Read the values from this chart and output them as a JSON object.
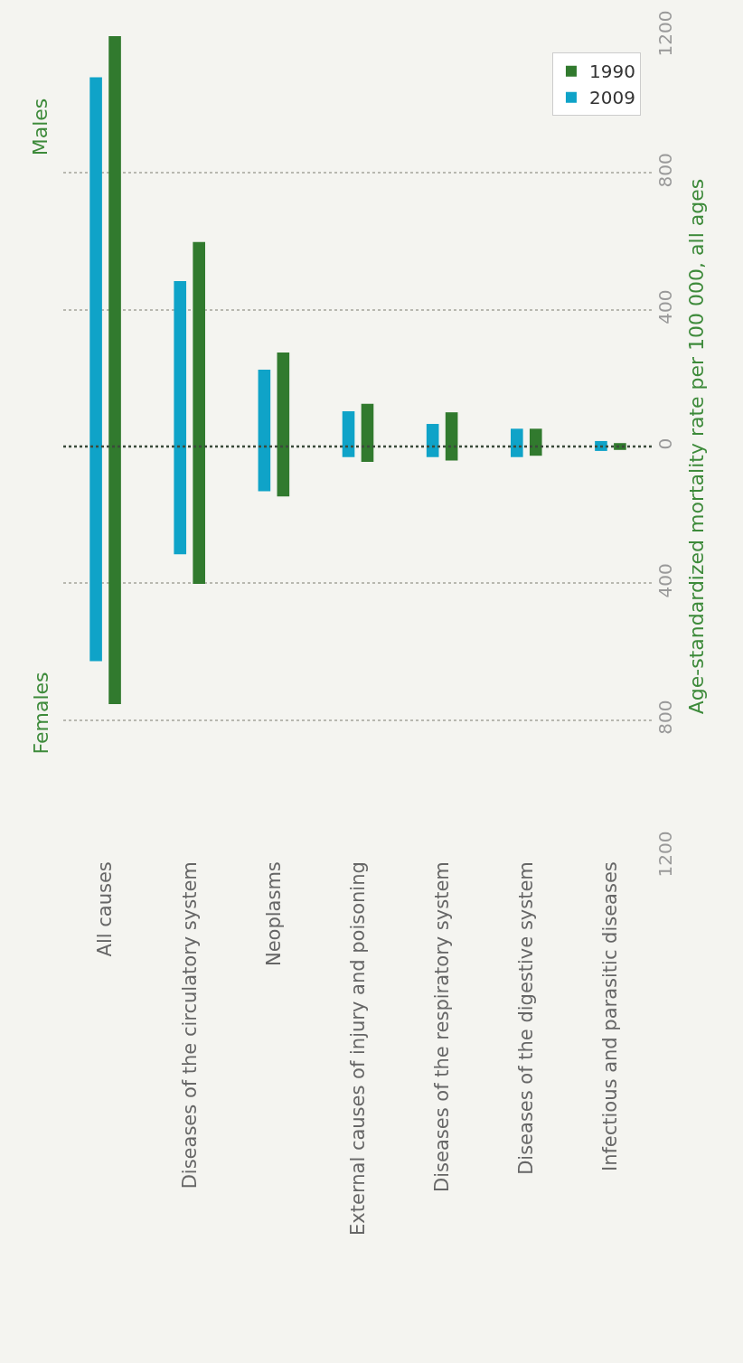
{
  "chart_data": {
    "type": "bar",
    "categories": [
      "All causes",
      "Diseases of the circulatory system",
      "Neoplasms",
      "External causes of injury and poisoning",
      "Diseases of the respiratory system",
      "Diseases of the digestive system",
      "Infectious and parasitic diseases"
    ],
    "series": [
      {
        "name": "2009",
        "color": "#0fa3c8",
        "base": [
          -628,
          -315,
          -131,
          -31,
          -31,
          -31,
          -13
        ],
        "values": [
          1708,
          799,
          356,
          134,
          97,
          83,
          29
        ]
      },
      {
        "name": "1990",
        "color": "#317a2e",
        "base": [
          -753,
          -402,
          -146,
          -45,
          -41,
          -27,
          -10
        ],
        "values": [
          1953,
          1000,
          421,
          170,
          141,
          79,
          20
        ]
      }
    ],
    "ylabel": "Age-standardized mortality rate per 100 000, all ages",
    "annotations": [
      "Males",
      "Females"
    ],
    "ylim": [
      -1200,
      1200
    ],
    "yticks": [
      {
        "value": -1200,
        "label": "1200"
      },
      {
        "value": -800,
        "label": "800"
      },
      {
        "value": -400,
        "label": "400"
      },
      0,
      400,
      800,
      1200
    ],
    "ref_lines": [
      {
        "axis": "y",
        "value": 0,
        "color": "#3a4a3a",
        "line_style": "dotted"
      }
    ],
    "grid": "y",
    "legend": "top right"
  }
}
